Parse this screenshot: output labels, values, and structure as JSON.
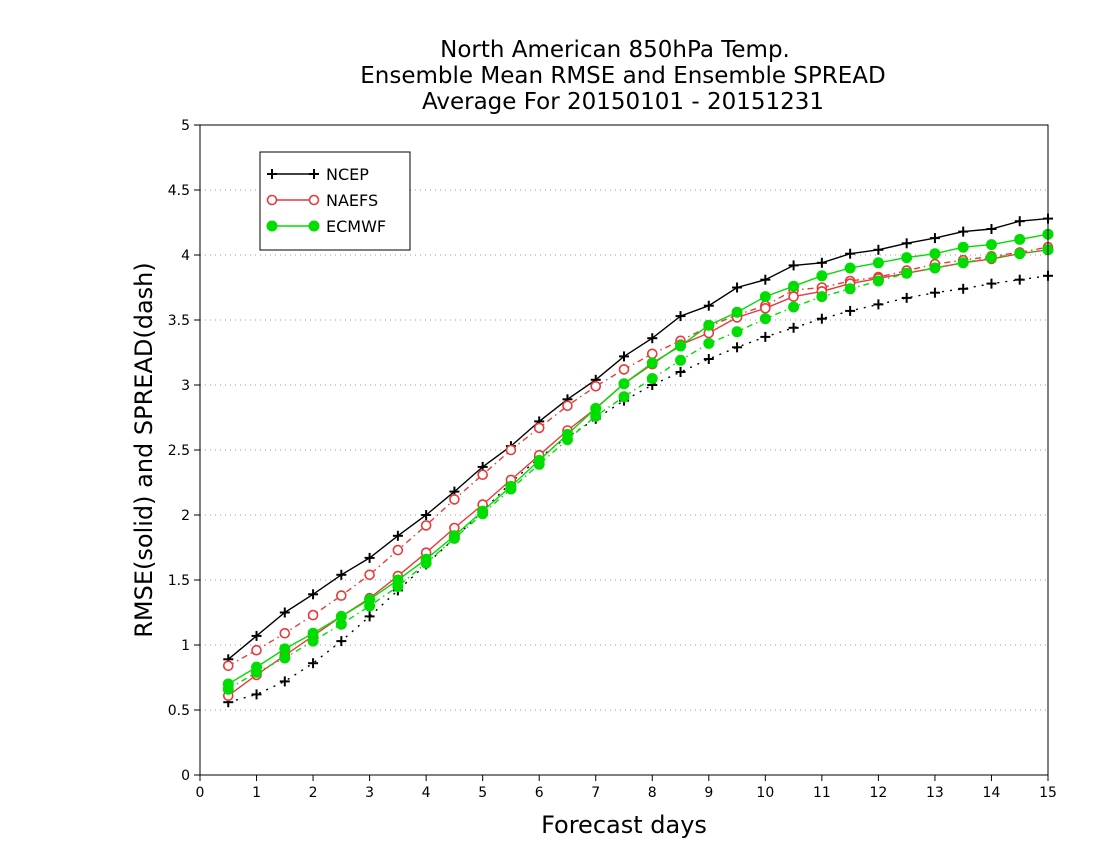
{
  "chart_data": {
    "type": "line",
    "title_lines": [
      "North American 850hPa Temp.",
      "Ensemble Mean RMSE and Ensemble SPREAD",
      "Average For 20150101 - 20151231"
    ],
    "xlabel": "Forecast days",
    "ylabel": "RMSE(solid) and SPREAD(dash)",
    "xlim": [
      0,
      15
    ],
    "ylim": [
      0,
      5
    ],
    "x_ticks": [
      "0",
      "1",
      "2",
      "3",
      "4",
      "5",
      "6",
      "7",
      "8",
      "9",
      "10",
      "11",
      "12",
      "13",
      "14",
      "15"
    ],
    "y_ticks": [
      "0",
      "0.5",
      "1",
      "1.5",
      "2",
      "2.5",
      "3",
      "3.5",
      "4",
      "4.5",
      "5"
    ],
    "grid": "horizontal dotted",
    "legend_position": "top-left",
    "x": [
      0.5,
      1,
      1.5,
      2,
      2.5,
      3,
      3.5,
      4,
      4.5,
      5,
      5.5,
      6,
      6.5,
      7,
      7.5,
      8,
      8.5,
      9,
      9.5,
      10,
      10.5,
      11,
      11.5,
      12,
      12.5,
      13,
      13.5,
      14,
      14.5,
      15
    ],
    "series": [
      {
        "name": "NCEP",
        "color": "#000000",
        "marker": "plus",
        "rmse": [
          0.89,
          1.07,
          1.25,
          1.39,
          1.54,
          1.67,
          1.84,
          2.0,
          2.18,
          2.37,
          2.53,
          2.72,
          2.89,
          3.04,
          3.22,
          3.36,
          3.53,
          3.61,
          3.75,
          3.81,
          3.92,
          3.94,
          4.01,
          4.04,
          4.09,
          4.13,
          4.18,
          4.2,
          4.26,
          4.28
        ],
        "spread": [
          0.56,
          0.62,
          0.72,
          0.86,
          1.03,
          1.22,
          1.42,
          1.62,
          1.82,
          2.03,
          2.25,
          2.44,
          2.6,
          2.74,
          2.88,
          3.0,
          3.1,
          3.2,
          3.29,
          3.37,
          3.44,
          3.51,
          3.57,
          3.62,
          3.67,
          3.71,
          3.74,
          3.78,
          3.81,
          3.84
        ]
      },
      {
        "name": "NAEFS",
        "color": "#e83a3a",
        "marker": "open-circle",
        "rmse": [
          0.61,
          0.77,
          0.92,
          1.07,
          1.22,
          1.36,
          1.53,
          1.71,
          1.9,
          2.08,
          2.27,
          2.46,
          2.65,
          2.82,
          3.01,
          3.16,
          3.31,
          3.4,
          3.52,
          3.59,
          3.68,
          3.72,
          3.78,
          3.82,
          3.86,
          3.9,
          3.94,
          3.97,
          4.01,
          4.04
        ],
        "spread": [
          0.84,
          0.96,
          1.09,
          1.23,
          1.38,
          1.54,
          1.73,
          1.92,
          2.12,
          2.31,
          2.5,
          2.67,
          2.84,
          2.99,
          3.12,
          3.24,
          3.34,
          3.45,
          3.54,
          3.61,
          3.73,
          3.75,
          3.8,
          3.83,
          3.88,
          3.93,
          3.96,
          3.99,
          4.02,
          4.06
        ]
      },
      {
        "name": "ECMWF",
        "color": "#00dd00",
        "marker": "filled-circle",
        "rmse": [
          0.7,
          0.83,
          0.97,
          1.09,
          1.22,
          1.35,
          1.5,
          1.66,
          1.84,
          2.03,
          2.22,
          2.42,
          2.62,
          2.82,
          3.01,
          3.17,
          3.3,
          3.46,
          3.56,
          3.68,
          3.76,
          3.84,
          3.9,
          3.94,
          3.98,
          4.01,
          4.06,
          4.08,
          4.12,
          4.16
        ],
        "spread": [
          0.66,
          0.79,
          0.9,
          1.03,
          1.16,
          1.3,
          1.45,
          1.63,
          1.82,
          2.01,
          2.2,
          2.39,
          2.58,
          2.76,
          2.91,
          3.05,
          3.19,
          3.32,
          3.41,
          3.51,
          3.6,
          3.68,
          3.74,
          3.8,
          3.86,
          3.9,
          3.94,
          3.98,
          4.01,
          4.04
        ]
      }
    ]
  }
}
